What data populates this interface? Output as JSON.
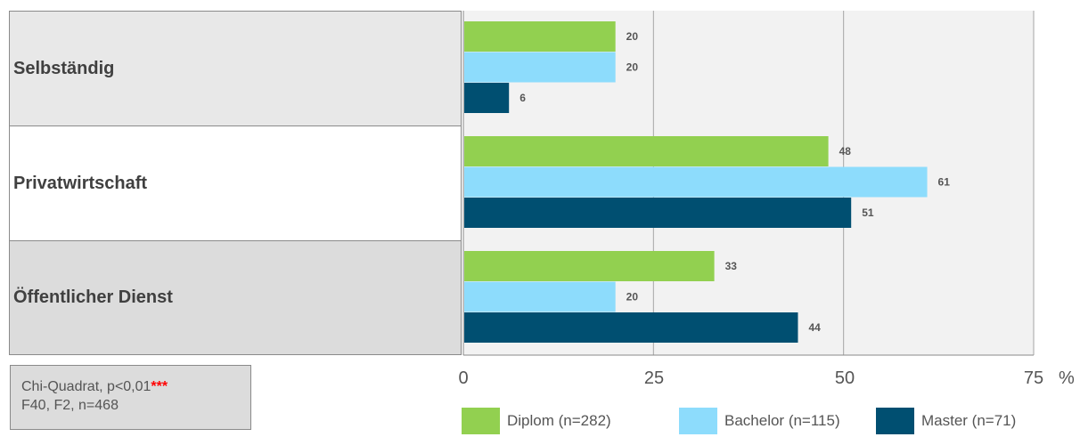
{
  "chart_data": {
    "type": "bar",
    "orientation": "horizontal",
    "categories": [
      "Selbständig",
      "Privatwirtschaft",
      "Öffentlicher Dienst"
    ],
    "series": [
      {
        "name": "Diplom (n=282)",
        "color": "#92d050",
        "values": [
          20,
          48,
          33
        ]
      },
      {
        "name": "Bachelor (n=115)",
        "color": "#8ddcfc",
        "values": [
          20,
          61,
          20
        ]
      },
      {
        "name": "Master (n=71)",
        "color": "#004f71",
        "values": [
          6,
          51,
          44
        ]
      }
    ],
    "xlim": [
      0,
      75
    ],
    "xticks": [
      "0",
      "25",
      "50",
      "75"
    ],
    "unit": "%",
    "grid": true,
    "legend_position": "bottom"
  },
  "note": {
    "line1": "Chi-Quadrat, p<0,01",
    "stars": "***",
    "line2": "F40, F2, n=468"
  }
}
